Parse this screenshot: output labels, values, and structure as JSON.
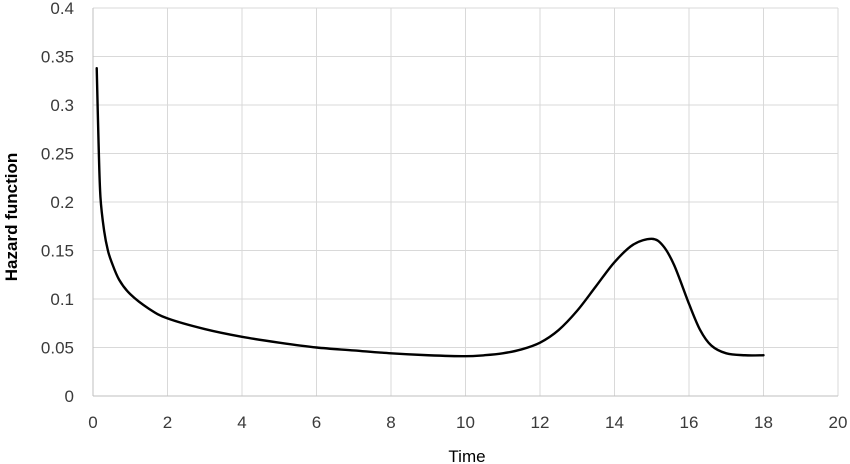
{
  "chart_data": {
    "type": "line",
    "title": "",
    "xlabel": "Time",
    "ylabel": "Hazard function",
    "xlim": [
      0,
      20
    ],
    "ylim": [
      0,
      0.4
    ],
    "x_ticks": [
      0,
      2,
      4,
      6,
      8,
      10,
      12,
      14,
      16,
      18,
      20
    ],
    "x_tick_labels": [
      "0",
      "2",
      "4",
      "6",
      "8",
      "10",
      "12",
      "14",
      "16",
      "18",
      "20"
    ],
    "y_ticks": [
      0,
      0.05,
      0.1,
      0.15,
      0.2,
      0.25,
      0.3,
      0.35,
      0.4
    ],
    "y_tick_labels": [
      "0",
      "0.05",
      "0.1",
      "0.15",
      "0.2",
      "0.25",
      "0.3",
      "0.35",
      "0.4"
    ],
    "grid": true,
    "legend": "none",
    "series": [
      {
        "color": "#000000",
        "x": [
          0.1,
          0.15,
          0.2,
          0.3,
          0.4,
          0.5,
          0.7,
          1,
          1.5,
          2,
          3,
          4,
          5,
          6,
          7,
          8,
          9,
          10,
          10.5,
          11,
          11.5,
          12,
          12.5,
          13,
          13.5,
          14,
          14.5,
          15,
          15.3,
          15.6,
          16,
          16.3,
          16.6,
          17,
          17.5,
          18
        ],
        "y": [
          0.338,
          0.26,
          0.205,
          0.17,
          0.15,
          0.138,
          0.12,
          0.105,
          0.09,
          0.08,
          0.069,
          0.061,
          0.055,
          0.05,
          0.047,
          0.044,
          0.042,
          0.041,
          0.042,
          0.044,
          0.048,
          0.055,
          0.068,
          0.088,
          0.113,
          0.138,
          0.156,
          0.162,
          0.155,
          0.135,
          0.095,
          0.068,
          0.052,
          0.044,
          0.042,
          0.042
        ]
      }
    ]
  }
}
